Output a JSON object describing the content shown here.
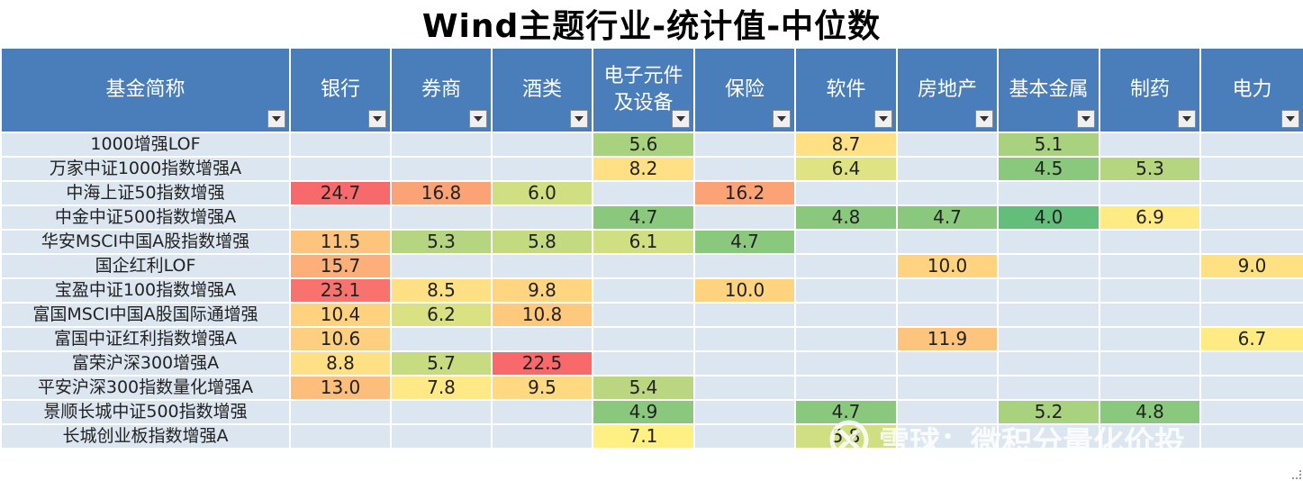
{
  "title": "Wind主题行业-统计值-中位数",
  "columns": [
    "基金简称",
    "银行",
    "券商",
    "酒类",
    "电子元件及设备",
    "保险",
    "软件",
    "房地产",
    "基本金属",
    "制药",
    "电力"
  ],
  "rows": [
    {
      "name": "1000增强LOF",
      "values": [
        "",
        "",
        "",
        "5.6",
        "",
        "8.7",
        "",
        "5.1",
        "",
        ""
      ]
    },
    {
      "name": "万家中证1000指数增强A",
      "values": [
        "",
        "",
        "",
        "8.2",
        "",
        "6.4",
        "",
        "4.5",
        "5.3",
        ""
      ]
    },
    {
      "name": "中海上证50指数增强",
      "values": [
        "24.7",
        "16.8",
        "6.0",
        "",
        "16.2",
        "",
        "",
        "",
        "",
        ""
      ]
    },
    {
      "name": "中金中证500指数增强A",
      "values": [
        "",
        "",
        "",
        "4.7",
        "",
        "4.8",
        "4.7",
        "4.0",
        "6.9",
        ""
      ]
    },
    {
      "name": "华安MSCI中国A股指数增强",
      "values": [
        "11.5",
        "5.3",
        "5.8",
        "6.1",
        "4.7",
        "",
        "",
        "",
        "",
        ""
      ]
    },
    {
      "name": "国企红利LOF",
      "values": [
        "15.7",
        "",
        "",
        "",
        "",
        "",
        "10.0",
        "",
        "",
        "9.0"
      ]
    },
    {
      "name": "宝盈中证100指数增强A",
      "values": [
        "23.1",
        "8.5",
        "9.8",
        "",
        "10.0",
        "",
        "",
        "",
        "",
        ""
      ]
    },
    {
      "name": "富国MSCI中国A股国际通增强",
      "values": [
        "10.4",
        "6.2",
        "10.8",
        "",
        "",
        "",
        "",
        "",
        "",
        ""
      ]
    },
    {
      "name": "富国中证红利指数增强A",
      "values": [
        "10.6",
        "",
        "",
        "",
        "",
        "",
        "11.9",
        "",
        "",
        "6.7"
      ]
    },
    {
      "name": "富荣沪深300增强A",
      "values": [
        "8.8",
        "5.7",
        "22.5",
        "",
        "",
        "",
        "",
        "",
        "",
        ""
      ]
    },
    {
      "name": "平安沪深300指数量化增强A",
      "values": [
        "13.0",
        "7.8",
        "9.5",
        "5.4",
        "",
        "",
        "",
        "",
        "",
        ""
      ]
    },
    {
      "name": "景顺长城中证500指数增强",
      "values": [
        "",
        "",
        "",
        "4.9",
        "",
        "4.7",
        "",
        "5.2",
        "4.8",
        ""
      ]
    },
    {
      "name": "长城创业板指数增强A",
      "values": [
        "",
        "",
        "",
        "7.1",
        "",
        "5.8",
        "",
        "",
        "",
        ""
      ]
    }
  ],
  "cell_colors": [
    [
      "",
      "",
      "",
      "#a9d27f",
      "",
      "#ffe084",
      "",
      "#a9d27f",
      "",
      ""
    ],
    [
      "",
      "",
      "",
      "#ffe084",
      "",
      "#dfe383",
      "",
      "#8ac97d",
      "#b5d580",
      ""
    ],
    [
      "#f8696b",
      "#fba276",
      "#cfdf82",
      "",
      "#fba276",
      "",
      "",
      "",
      "",
      ""
    ],
    [
      "",
      "",
      "",
      "#8ac97d",
      "",
      "#8ac97d",
      "#8ac97d",
      "#63be7b",
      "#ffeb84",
      ""
    ],
    [
      "#fdc47d",
      "#b5d580",
      "#c3da81",
      "#cfdf82",
      "#8ac97d",
      "",
      "",
      "",
      "",
      ""
    ],
    [
      "#fcaf78",
      "",
      "",
      "",
      "",
      "",
      "#ffd37f",
      "",
      "",
      "#ffe183"
    ],
    [
      "#f8736d",
      "#ffe084",
      "#ffd581",
      "",
      "#ffd37f",
      "",
      "",
      "",
      "",
      ""
    ],
    [
      "#ffd280",
      "#d9e182",
      "#fec87d",
      "",
      "",
      "",
      "",
      "",
      "",
      ""
    ],
    [
      "#fecf80",
      "",
      "",
      "",
      "",
      "",
      "#fdc47d",
      "",
      "",
      "#ffeb84"
    ],
    [
      "#ffe084",
      "#c7db81",
      "#f8696b",
      "",
      "",
      "",
      "",
      "",
      "",
      ""
    ],
    [
      "#fdbe7b",
      "#ffe886",
      "#ffd981",
      "#bbd680",
      "",
      "",
      "",
      "",
      "",
      ""
    ],
    [
      "",
      "",
      "",
      "#8ac97d",
      "",
      "#8ac97d",
      "",
      "#a9d27f",
      "#8ac97d",
      ""
    ],
    [
      "",
      "",
      "",
      "#fff084",
      "",
      "#cfdf82",
      "",
      "",
      "",
      ""
    ]
  ],
  "watermark": {
    "text": "雪球：微积分量化价投",
    "icon": "xueqiu-snowball-icon"
  }
}
